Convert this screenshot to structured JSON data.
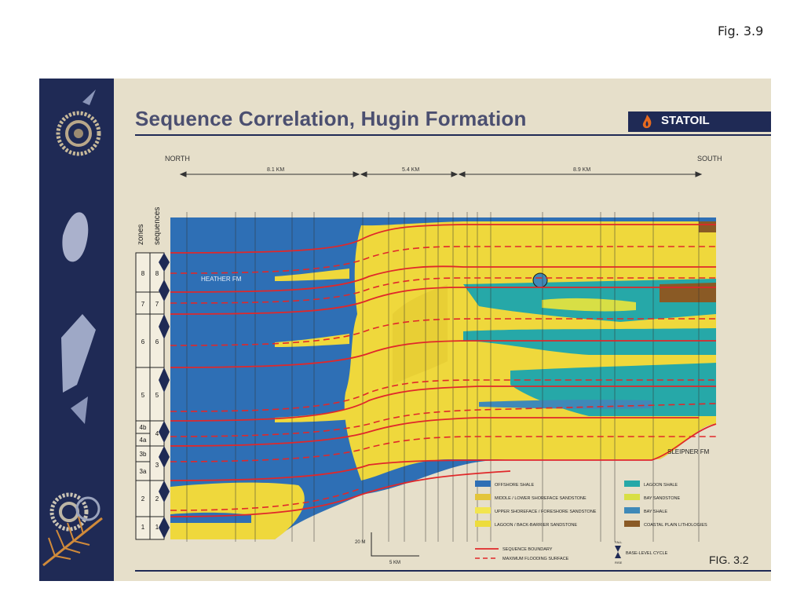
{
  "page": {
    "figure_number": "Fig. 3.9"
  },
  "poster": {
    "title": "Sequence Correlation, Hugin Formation",
    "logo_text": "STATOIL",
    "north_label": "NORTH",
    "south_label": "SOUTH",
    "distances": [
      "8.1 KM",
      "5.4 KM",
      "8.9 KM"
    ],
    "column_headers": {
      "zones": "zones",
      "sequences": "sequences"
    },
    "zones": [
      "8",
      "7",
      "6",
      "5",
      "4b",
      "4a",
      "3b",
      "3a",
      "2",
      "1"
    ],
    "sequences": [
      "8",
      "7",
      "6",
      "5",
      "4",
      "3",
      "2",
      "1"
    ],
    "formation_labels": {
      "upper": "HEATHER FM",
      "lower": "SLEIPNER FM"
    },
    "legend": [
      {
        "label": "OFFSHORE SHALE",
        "color": "#2e6fb5"
      },
      {
        "label": "LAGOON SHALE",
        "color": "#26a8a8"
      },
      {
        "label": "MIDDLE / LOWER SHOREFACE SANDSTONE",
        "color": "#e3c53a"
      },
      {
        "label": "BAY SANDSTONE",
        "color": "#d8df45"
      },
      {
        "label": "UPPER SHOREFACE / FORESHORE SANDSTONE",
        "color": "#f2e550"
      },
      {
        "label": "BAY SHALE",
        "color": "#3f89b8"
      },
      {
        "label": "LAGOON / BACK-BARRIER SANDSTONE",
        "color": "#eddc3c"
      },
      {
        "label": "COASTAL PLAIN LITHOLOGIES",
        "color": "#8a5a25"
      }
    ],
    "line_legend": [
      {
        "label": "SEQUENCE BOUNDARY",
        "style": "solid"
      },
      {
        "label": "MAXIMUM FLOODING SURFACE",
        "style": "dashed"
      }
    ],
    "cycle_legend": {
      "top": "FALL",
      "bottom": "RISE",
      "label": "BASE-LEVEL CYCLE"
    },
    "scale": {
      "vertical": "20 M",
      "horizontal": "5 KM"
    },
    "figure_label": "FIG. 3.2",
    "colors": {
      "navy": "#1f2a55",
      "offshore": "#2e6fb5",
      "sand": "#efd83c",
      "boundary": "#e0282a"
    }
  }
}
